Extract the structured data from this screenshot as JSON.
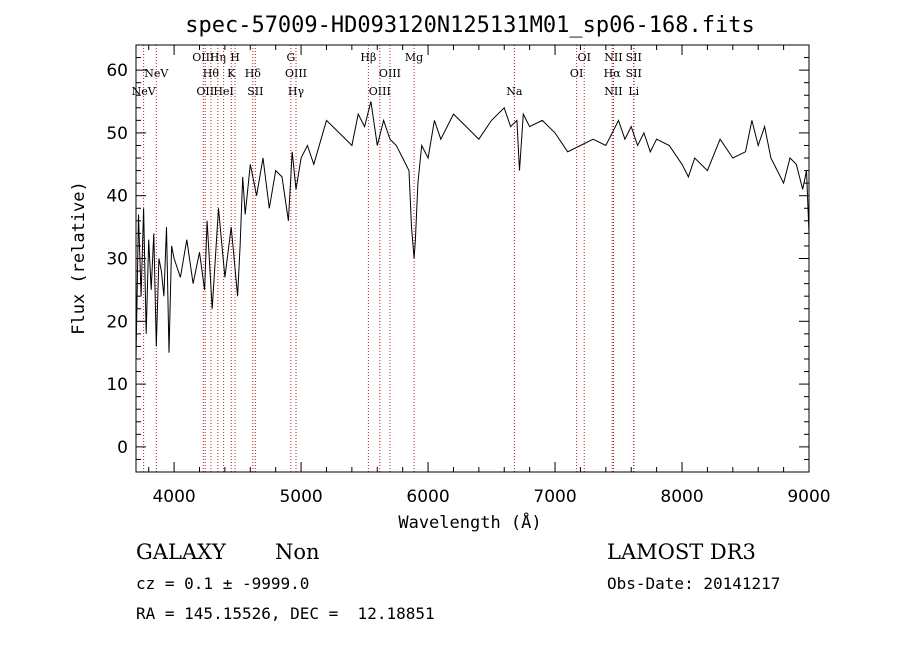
{
  "chart_data": {
    "type": "line",
    "title": "spec-57009-HD093120N125131M01_sp06-168.fits",
    "xlabel": "Wavelength (Å)",
    "ylabel": "Flux (relative)",
    "xlim": [
      3700,
      9000
    ],
    "ylim": [
      -4,
      64
    ],
    "x_ticks": [
      4000,
      5000,
      6000,
      7000,
      8000,
      9000
    ],
    "y_ticks": [
      0,
      10,
      20,
      30,
      40,
      50,
      60
    ],
    "series": [
      {
        "name": "spectrum",
        "x": [
          3700,
          3720,
          3740,
          3760,
          3780,
          3800,
          3820,
          3840,
          3860,
          3880,
          3900,
          3920,
          3940,
          3960,
          3980,
          4000,
          4050,
          4100,
          4150,
          4200,
          4240,
          4260,
          4300,
          4350,
          4400,
          4450,
          4500,
          4520,
          4540,
          4560,
          4600,
          4650,
          4700,
          4750,
          4800,
          4850,
          4900,
          4930,
          4960,
          5000,
          5050,
          5100,
          5200,
          5300,
          5400,
          5450,
          5500,
          5550,
          5600,
          5650,
          5700,
          5750,
          5800,
          5850,
          5870,
          5890,
          5900,
          5920,
          5950,
          6000,
          6050,
          6100,
          6200,
          6300,
          6400,
          6500,
          6600,
          6650,
          6700,
          6720,
          6750,
          6800,
          6900,
          7000,
          7100,
          7200,
          7300,
          7400,
          7450,
          7500,
          7550,
          7600,
          7650,
          7700,
          7750,
          7800,
          7900,
          8000,
          8050,
          8100,
          8200,
          8300,
          8400,
          8500,
          8550,
          8600,
          8650,
          8700,
          8750,
          8800,
          8850,
          8900,
          8950,
          8980,
          9000
        ],
        "values": [
          14,
          37,
          24,
          38,
          18,
          33,
          25,
          34,
          16,
          30,
          28,
          24,
          35,
          15,
          32,
          30,
          27,
          33,
          26,
          31,
          25,
          36,
          22,
          38,
          27,
          35,
          24,
          32,
          43,
          37,
          45,
          40,
          46,
          38,
          44,
          43,
          36,
          47,
          41,
          46,
          48,
          45,
          52,
          50,
          48,
          53,
          51,
          55,
          48,
          52,
          49,
          48,
          46,
          44,
          35,
          30,
          33,
          42,
          48,
          46,
          52,
          49,
          53,
          51,
          49,
          52,
          54,
          51,
          52,
          44,
          53,
          51,
          52,
          50,
          47,
          48,
          49,
          48,
          50,
          52,
          49,
          51,
          48,
          50,
          47,
          49,
          48,
          45,
          43,
          46,
          44,
          49,
          46,
          47,
          52,
          48,
          51,
          46,
          44,
          42,
          46,
          45,
          41,
          44,
          34
        ]
      }
    ],
    "spectral_lines": [
      {
        "label": "NeV",
        "x": 3760,
        "row": 2
      },
      {
        "label": "NeV",
        "x": 3860,
        "row": 1
      },
      {
        "label": "OIII",
        "x": 4230,
        "row": 0
      },
      {
        "label": "OII",
        "x": 4245,
        "row": 2
      },
      {
        "label": "Hθ",
        "x": 4290,
        "row": 1
      },
      {
        "label": "Hη",
        "x": 4345,
        "row": 0
      },
      {
        "label": "HeI",
        "x": 4390,
        "row": 2
      },
      {
        "label": "H",
        "x": 4480,
        "row": 0
      },
      {
        "label": "K",
        "x": 4450,
        "row": 1
      },
      {
        "label": "Hδ",
        "x": 4620,
        "row": 1
      },
      {
        "label": "SII",
        "x": 4640,
        "row": 2
      },
      {
        "label": "G",
        "x": 4920,
        "row": 0
      },
      {
        "label": "OIII",
        "x": 4960,
        "row": 1
      },
      {
        "label": "Hγ",
        "x": 4960,
        "row": 2
      },
      {
        "label": "Hβ",
        "x": 5530,
        "row": 0
      },
      {
        "label": "OIII",
        "x": 5700,
        "row": 1
      },
      {
        "label": "OIII",
        "x": 5620,
        "row": 2
      },
      {
        "label": "Mg",
        "x": 5890,
        "row": 0
      },
      {
        "label": "Na",
        "x": 6680,
        "row": 2
      },
      {
        "label": "OI",
        "x": 7230,
        "row": 0
      },
      {
        "label": "OI",
        "x": 7170,
        "row": 1
      },
      {
        "label": "NII",
        "x": 7460,
        "row": 0
      },
      {
        "label": "Hα",
        "x": 7450,
        "row": 1
      },
      {
        "label": "NII",
        "x": 7460,
        "row": 2
      },
      {
        "label": "SII",
        "x": 7620,
        "row": 0
      },
      {
        "label": "SII",
        "x": 7620,
        "row": 1
      },
      {
        "label": "Li",
        "x": 7620,
        "row": 2
      }
    ]
  },
  "footer": {
    "object_class": "GALAXY",
    "subclass": "Non",
    "survey": "LAMOST DR3",
    "cz": "cz = 0.1 ± -9999.0",
    "obs_date": "Obs-Date: 20141217",
    "coords": "RA = 145.15526, DEC =  12.18851"
  }
}
